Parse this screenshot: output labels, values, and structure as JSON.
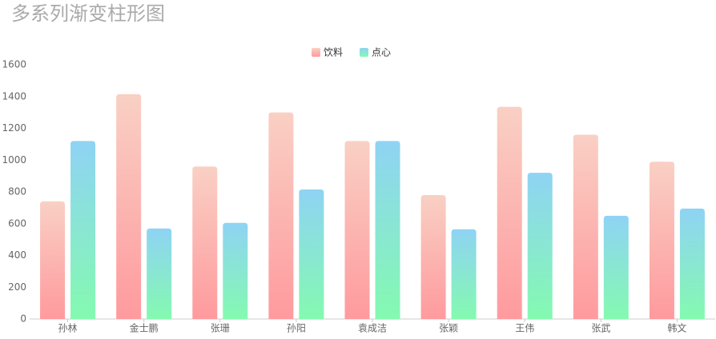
{
  "chart_data": {
    "type": "bar",
    "title": "多系列渐变柱形图",
    "categories": [
      "孙林",
      "金士鹏",
      "张珊",
      "孙阳",
      "袁成洁",
      "张颖",
      "王伟",
      "张武",
      "韩文"
    ],
    "series": [
      {
        "name": "饮料",
        "gradient": [
          "#f9d0c4",
          "#ff9a9e"
        ],
        "values": [
          740,
          1415,
          960,
          1300,
          1120,
          780,
          1335,
          1160,
          990
        ]
      },
      {
        "name": "点心",
        "gradient": [
          "#8fd3f4",
          "#84fab0"
        ],
        "values": [
          1120,
          570,
          605,
          815,
          1120,
          565,
          920,
          650,
          695
        ]
      }
    ],
    "ylim": [
      0,
      1600
    ],
    "yticks": [
      0,
      200,
      400,
      600,
      800,
      1000,
      1200,
      1400,
      1600
    ],
    "grid": false,
    "legend": "top"
  }
}
